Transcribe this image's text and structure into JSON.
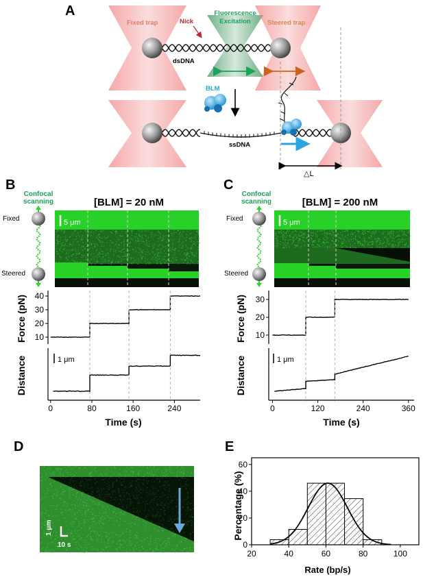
{
  "panels": {
    "a": "A",
    "b": "B",
    "c": "C",
    "d": "D",
    "e": "E"
  },
  "schematic": {
    "fixed_trap": "Fixed trap",
    "nick": "Nick",
    "fluorescence_1": "Fluorescence",
    "fluorescence_2": "Excitation",
    "steered_trap": "Steered trap",
    "dsdna": "dsDNA",
    "blm": "BLM",
    "ssdna": "ssDNA",
    "delta_l": "△L"
  },
  "colors": {
    "green": "#2bd62b",
    "trap": "#f07d7d",
    "fluor_text": "#1aa35a",
    "nick_text": "#c0282b",
    "steered_text": "#d98a55",
    "blm_text": "#26a8de",
    "arrow_blue": "#2aa4dc",
    "arrow_orange": "#c8641e"
  },
  "panel_b": {
    "title": "[BLM] = 20 nM",
    "confocal_1": "Confocal",
    "confocal_2": "scanning",
    "fixed": "Fixed",
    "steered": "Steered",
    "scalebar": "5 μm",
    "dist_scalebar": "1 μm",
    "force_ylabel": "Force (pN)",
    "dist_ylabel": "Distance",
    "xlabel": "Time (s)"
  },
  "panel_c": {
    "title": "[BLM] = 200 nM",
    "confocal_1": "Confocal",
    "confocal_2": "scanning",
    "fixed": "Fixed",
    "steered": "Steered",
    "scalebar": "5 μm",
    "dist_scalebar": "1 μm",
    "force_ylabel": "Force (pN)",
    "dist_ylabel": "Distance",
    "xlabel": "Time (s)"
  },
  "panel_d": {
    "scale_y": "1 μm",
    "scale_x": "10 s"
  },
  "chart_data": [
    {
      "type": "line",
      "panel": "B",
      "xlabel": "Time (s)",
      "ylabel": "Force (pN)",
      "x_ticks": [
        0,
        80,
        160,
        240
      ],
      "y_ticks": [
        10,
        20,
        30,
        40
      ],
      "xlim": [
        -5,
        290
      ],
      "ylim": [
        5,
        44
      ],
      "series": [
        {
          "x": [
            0,
            76,
            76,
            152,
            152,
            232,
            232,
            290
          ],
          "y": [
            10,
            10,
            20,
            20,
            30,
            30,
            40,
            40
          ]
        }
      ]
    },
    {
      "type": "line",
      "panel": "B",
      "xlabel": "Time (s)",
      "ylabel": "Distance",
      "x_ticks": [
        0,
        80,
        160,
        240
      ],
      "series": [
        {
          "x": [
            5,
            76,
            76,
            152,
            152,
            232,
            232,
            290
          ],
          "y": [
            0.2,
            0.2,
            1.1,
            1.1,
            1.6,
            1.6,
            2.2,
            2.2
          ]
        }
      ]
    },
    {
      "type": "line",
      "panel": "C",
      "xlabel": "Time (s)",
      "ylabel": "Force (pN)",
      "x_ticks": [
        0,
        120,
        240,
        360
      ],
      "y_ticks": [
        10,
        20,
        30
      ],
      "xlim": [
        -10,
        375
      ],
      "ylim": [
        5,
        35
      ],
      "series": [
        {
          "x": [
            0,
            88,
            88,
            165,
            165,
            360
          ],
          "y": [
            10,
            10,
            20,
            20,
            30,
            30
          ]
        }
      ]
    },
    {
      "type": "line",
      "panel": "C",
      "xlabel": "Time (s)",
      "ylabel": "Distance",
      "x_ticks": [
        0,
        120,
        240,
        360
      ],
      "series": [
        {
          "x": [
            5,
            88,
            88,
            165,
            165,
            360
          ],
          "y": [
            0.2,
            0.35,
            0.75,
            0.85,
            1.15,
            2.15
          ]
        }
      ]
    },
    {
      "type": "bar",
      "panel": "E",
      "xlabel": "Rate (bp/s)",
      "ylabel": "Percentage (%)",
      "x_ticks": [
        20,
        40,
        60,
        80,
        100
      ],
      "y_ticks": [
        0,
        20,
        40,
        60
      ],
      "xlim": [
        20,
        110
      ],
      "ylim": [
        0,
        65
      ],
      "bin_width": 10,
      "bin_starts": [
        30,
        40,
        50,
        60,
        70,
        80
      ],
      "values": [
        3.8,
        11.5,
        46,
        46,
        34.5,
        3.8
      ],
      "fit": {
        "type": "gaussian",
        "mean": 61,
        "sigma": 10.5,
        "amplitude": 46
      }
    }
  ]
}
